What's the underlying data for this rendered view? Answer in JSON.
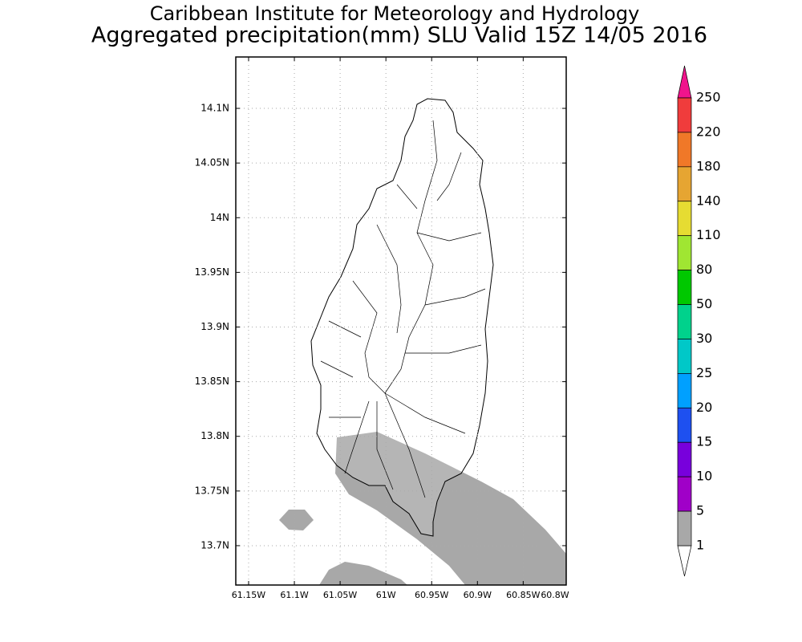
{
  "chart_data": {
    "type": "map",
    "title": "Caribbean Institute for Meteorology and Hydrology",
    "subtitle": "Aggregated precipitation(mm) SLU Valid 15Z 14/05 2016",
    "xlim": [
      61.164,
      60.803
    ],
    "xticks": [
      {
        "value": 61.15,
        "label": "61.15W"
      },
      {
        "value": 61.1,
        "label": "61.1W"
      },
      {
        "value": 61.05,
        "label": "61.05W"
      },
      {
        "value": 61.0,
        "label": "61W"
      },
      {
        "value": 60.95,
        "label": "60.95W"
      },
      {
        "value": 60.9,
        "label": "60.9W"
      },
      {
        "value": 60.85,
        "label": "60.85W"
      },
      {
        "value": 60.8,
        "label": "60.8W"
      }
    ],
    "ylim": [
      13.664,
      14.147
    ],
    "yticks": [
      {
        "value": 14.1,
        "label": "14.1N"
      },
      {
        "value": 14.05,
        "label": "14.05N"
      },
      {
        "value": 14.0,
        "label": "14N"
      },
      {
        "value": 13.95,
        "label": "13.95N"
      },
      {
        "value": 13.9,
        "label": "13.9N"
      },
      {
        "value": 13.85,
        "label": "13.85N"
      },
      {
        "value": 13.8,
        "label": "13.8N"
      },
      {
        "value": 13.75,
        "label": "13.75N"
      },
      {
        "value": 13.7,
        "label": "13.7N"
      }
    ],
    "grid": true,
    "colorbar": {
      "levels": [
        250,
        220,
        180,
        140,
        110,
        80,
        50,
        30,
        25,
        20,
        15,
        10,
        5,
        1
      ],
      "colors": [
        "#f03c3c",
        "#f07828",
        "#e6a532",
        "#e6dc32",
        "#a0e632",
        "#00c800",
        "#00d28c",
        "#00c8c8",
        "#00a0ff",
        "#1e50f0",
        "#7800dc",
        "#a000c8",
        "#a8a8a8"
      ],
      "extend_top_color": "#f0148c",
      "extend_bottom_color": "#ffffff"
    },
    "precip_color": "#a8a8a8"
  }
}
